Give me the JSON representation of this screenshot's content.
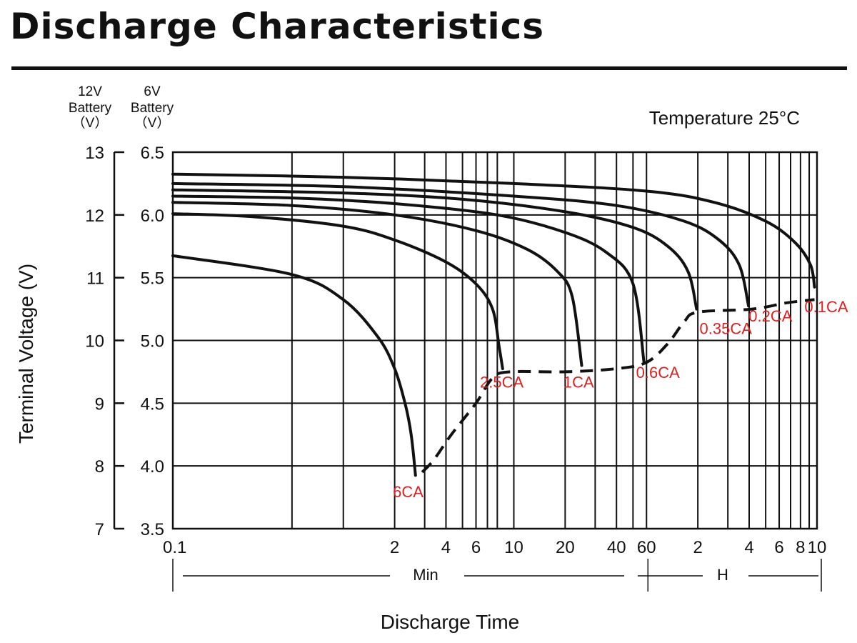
{
  "title": "Discharge Characteristics",
  "chart_data": {
    "type": "line",
    "title": "Discharge Characteristics",
    "temperature": "Temperature 25°C",
    "xlabel": "Discharge Time",
    "ylabel": "Terminal Voltage (V)",
    "y_axis_12v_header": [
      "12V",
      "Battery",
      "（V）"
    ],
    "y_axis_6v_header": [
      "6V",
      "Battery",
      "（V）"
    ],
    "x_scale": "log",
    "xlim_min": [
      0.1,
      600
    ],
    "ylim_12v": [
      7,
      13
    ],
    "ylim_6v": [
      3.5,
      6.5
    ],
    "y_ticks_12v": [
      "7",
      "8",
      "9",
      "10",
      "11",
      "12",
      "13"
    ],
    "y_ticks_6v": [
      "3.5",
      "4.0",
      "4.5",
      "5.0",
      "5.5",
      "6.0",
      "6.5"
    ],
    "x_ticks": [
      {
        "min": 0.1,
        "label": "0.1"
      },
      {
        "min": 2,
        "label": "2"
      },
      {
        "min": 4,
        "label": "4"
      },
      {
        "min": 6,
        "label": "6"
      },
      {
        "min": 10,
        "label": "10"
      },
      {
        "min": 20,
        "label": "20"
      },
      {
        "min": 40,
        "label": "40"
      },
      {
        "min": 60,
        "label": "60"
      },
      {
        "min": 120,
        "label": "2"
      },
      {
        "min": 240,
        "label": "4"
      },
      {
        "min": 360,
        "label": "6"
      },
      {
        "min": 480,
        "label": "8"
      },
      {
        "min": 600,
        "label": "10"
      }
    ],
    "x_minor_grid_min": [
      0.5,
      1,
      3,
      5,
      7,
      8,
      30,
      50,
      180,
      300,
      420,
      540
    ],
    "x_units": {
      "min_label": "Min",
      "hour_label": "H"
    },
    "grid": true,
    "series": [
      {
        "name": "6CA",
        "points": [
          [
            0.1,
            11.35
          ],
          [
            0.5,
            11.05
          ],
          [
            1.0,
            10.65
          ],
          [
            1.6,
            10.05
          ],
          [
            2.0,
            9.55
          ],
          [
            2.3,
            9.0
          ],
          [
            2.5,
            8.5
          ],
          [
            2.65,
            7.85
          ]
        ]
      },
      {
        "name": "2.5CA",
        "points": [
          [
            0.1,
            12.02
          ],
          [
            0.3,
            11.97
          ],
          [
            1.0,
            11.82
          ],
          [
            2.0,
            11.6
          ],
          [
            4.0,
            11.25
          ],
          [
            6.0,
            10.9
          ],
          [
            7.5,
            10.5
          ],
          [
            8.2,
            9.9
          ],
          [
            8.6,
            9.55
          ]
        ]
      },
      {
        "name": "1CA",
        "points": [
          [
            0.1,
            12.2
          ],
          [
            0.5,
            12.15
          ],
          [
            2.0,
            12.0
          ],
          [
            6.0,
            11.75
          ],
          [
            12.0,
            11.45
          ],
          [
            18.0,
            11.1
          ],
          [
            22.0,
            10.7
          ],
          [
            25.0,
            9.6
          ]
        ]
      },
      {
        "name": "0.6CA",
        "points": [
          [
            0.1,
            12.3
          ],
          [
            0.5,
            12.27
          ],
          [
            2.0,
            12.18
          ],
          [
            8.0,
            12.0
          ],
          [
            20.0,
            11.72
          ],
          [
            35.0,
            11.4
          ],
          [
            50.0,
            10.9
          ],
          [
            58.0,
            9.65
          ]
        ]
      },
      {
        "name": "0.35CA",
        "points": [
          [
            0.1,
            12.4
          ],
          [
            1.0,
            12.35
          ],
          [
            5.0,
            12.25
          ],
          [
            20.0,
            12.05
          ],
          [
            50.0,
            11.8
          ],
          [
            80.0,
            11.5
          ],
          [
            105.0,
            11.1
          ],
          [
            118.0,
            10.5
          ]
        ]
      },
      {
        "name": "0.2CA",
        "points": [
          [
            0.1,
            12.5
          ],
          [
            1.0,
            12.45
          ],
          [
            10.0,
            12.3
          ],
          [
            40.0,
            12.15
          ],
          [
            100.0,
            11.9
          ],
          [
            160.0,
            11.6
          ],
          [
            210.0,
            11.2
          ],
          [
            238.0,
            10.55
          ]
        ]
      },
      {
        "name": "0.1CA",
        "points": [
          [
            0.1,
            12.65
          ],
          [
            1.0,
            12.6
          ],
          [
            10.0,
            12.5
          ],
          [
            60.0,
            12.38
          ],
          [
            150.0,
            12.2
          ],
          [
            300.0,
            11.9
          ],
          [
            450.0,
            11.55
          ],
          [
            550.0,
            11.2
          ],
          [
            580.0,
            10.85
          ]
        ]
      }
    ],
    "end_voltage_line": {
      "style": "dashed",
      "points": [
        [
          2.9,
          7.9
        ],
        [
          3.4,
          8.1
        ],
        [
          4.3,
          8.5
        ],
        [
          6.0,
          9.0
        ],
        [
          7.5,
          9.4
        ],
        [
          9.5,
          9.5
        ],
        [
          20.0,
          9.5
        ],
        [
          40.0,
          9.55
        ],
        [
          60.0,
          9.65
        ],
        [
          80.0,
          9.95
        ],
        [
          100.0,
          10.3
        ],
        [
          120.0,
          10.45
        ],
        [
          250.0,
          10.5
        ],
        [
          400.0,
          10.6
        ],
        [
          580.0,
          10.65
        ]
      ]
    },
    "annotations": [
      {
        "text": "6CA",
        "x": 2.4,
        "y": 7.5
      },
      {
        "text": "2.5CA",
        "x": 8.5,
        "y": 9.25
      },
      {
        "text": "1CA",
        "x": 24,
        "y": 9.25
      },
      {
        "text": "0.6CA",
        "x": 70,
        "y": 9.4
      },
      {
        "text": "0.35CA",
        "x": 175,
        "y": 10.1
      },
      {
        "text": "0.2CA",
        "x": 320,
        "y": 10.3
      },
      {
        "text": "0.1CA",
        "x": 680,
        "y": 10.45
      }
    ],
    "colors": {
      "curve": "#111111",
      "label": "#e02020",
      "grid": "#111111"
    }
  }
}
